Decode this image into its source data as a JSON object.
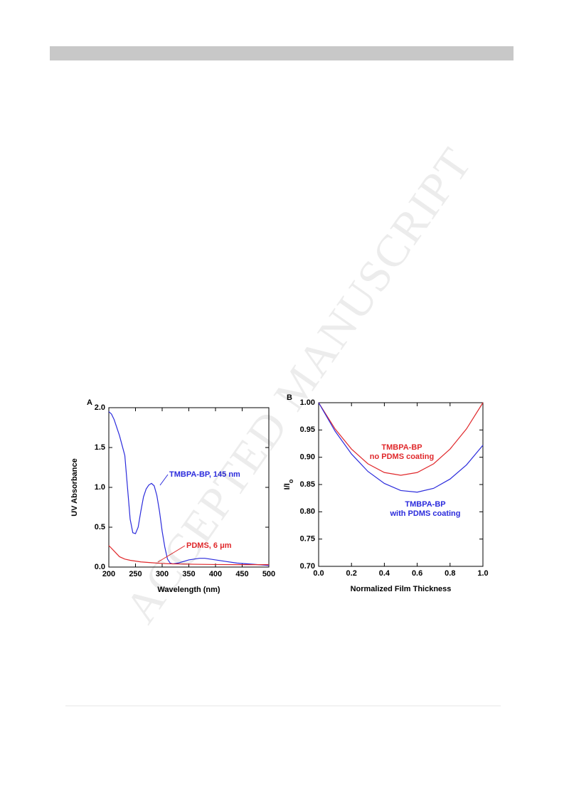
{
  "watermark": "ACCEPTED MANUSCRIPT",
  "chart_data": [
    {
      "type": "line",
      "panel": "A",
      "xlabel": "Wavelength (nm)",
      "ylabel": "UV Absorbance",
      "xlim": [
        200,
        500
      ],
      "xticks": [
        200,
        250,
        300,
        350,
        400,
        450,
        500
      ],
      "ylim": [
        0,
        2
      ],
      "yticks": [
        {
          "value": 0,
          "label": "0.0"
        },
        {
          "value": 0.5,
          "label": "0.5"
        },
        {
          "value": 1,
          "label": "1.0"
        },
        {
          "value": 1.5,
          "label": "1.5"
        },
        {
          "value": 2,
          "label": "2.0"
        }
      ],
      "series": [
        {
          "name": "TMBPA-BP, 145 nm",
          "color": "#2b2bdc",
          "x": [
            200,
            205,
            210,
            220,
            230,
            235,
            240,
            245,
            250,
            255,
            260,
            265,
            270,
            275,
            280,
            285,
            290,
            295,
            300,
            305,
            310,
            315,
            320,
            330,
            340,
            350,
            360,
            370,
            380,
            390,
            400,
            420,
            440,
            460,
            480,
            500
          ],
          "values": [
            1.95,
            1.92,
            1.85,
            1.65,
            1.4,
            1.0,
            0.6,
            0.43,
            0.42,
            0.5,
            0.7,
            0.88,
            0.98,
            1.03,
            1.05,
            1.02,
            0.9,
            0.7,
            0.45,
            0.25,
            0.1,
            0.05,
            0.04,
            0.05,
            0.07,
            0.09,
            0.1,
            0.11,
            0.11,
            0.1,
            0.09,
            0.07,
            0.05,
            0.04,
            0.03,
            0.02
          ]
        },
        {
          "name": "PDMS, 6 μm",
          "color": "#e0282b",
          "x": [
            200,
            210,
            220,
            230,
            240,
            250,
            260,
            280,
            300,
            320,
            340,
            360,
            400,
            450,
            500
          ],
          "values": [
            0.27,
            0.2,
            0.13,
            0.1,
            0.085,
            0.075,
            0.065,
            0.055,
            0.045,
            0.04,
            0.038,
            0.035,
            0.032,
            0.03,
            0.03
          ]
        }
      ]
    },
    {
      "type": "line",
      "panel": "B",
      "xlabel": "Normalized Film Thickness",
      "ylabel": "I/I",
      "ylabel_sub": "o",
      "xlim": [
        0,
        1
      ],
      "xticks": [
        {
          "value": 0,
          "label": "0.0"
        },
        {
          "value": 0.2,
          "label": "0.2"
        },
        {
          "value": 0.4,
          "label": "0.4"
        },
        {
          "value": 0.6,
          "label": "0.6"
        },
        {
          "value": 0.8,
          "label": "0.8"
        },
        {
          "value": 1,
          "label": "1.0"
        }
      ],
      "ylim": [
        0.7,
        1
      ],
      "yticks": [
        {
          "value": 0.7,
          "label": "0.70"
        },
        {
          "value": 0.75,
          "label": "0.75"
        },
        {
          "value": 0.8,
          "label": "0.80"
        },
        {
          "value": 0.85,
          "label": "0.85"
        },
        {
          "value": 0.9,
          "label": "0.90"
        },
        {
          "value": 0.95,
          "label": "0.95"
        },
        {
          "value": 1,
          "label": "1.00"
        }
      ],
      "series": [
        {
          "name": "TMBPA-BP",
          "description": "no PDMS coating",
          "color": "#e0282b",
          "x": [
            0,
            0.1,
            0.2,
            0.3,
            0.4,
            0.5,
            0.6,
            0.7,
            0.8,
            0.9,
            1
          ],
          "values": [
            1,
            0.952,
            0.915,
            0.888,
            0.872,
            0.867,
            0.872,
            0.888,
            0.915,
            0.952,
            1
          ]
        },
        {
          "name": "TMBPA-BP",
          "description": "with PDMS coating",
          "color": "#2b2bdc",
          "x": [
            0,
            0.1,
            0.2,
            0.3,
            0.4,
            0.5,
            0.6,
            0.7,
            0.8,
            0.9,
            1
          ],
          "values": [
            1,
            0.948,
            0.906,
            0.874,
            0.852,
            0.839,
            0.836,
            0.843,
            0.86,
            0.886,
            0.922
          ]
        }
      ]
    }
  ]
}
